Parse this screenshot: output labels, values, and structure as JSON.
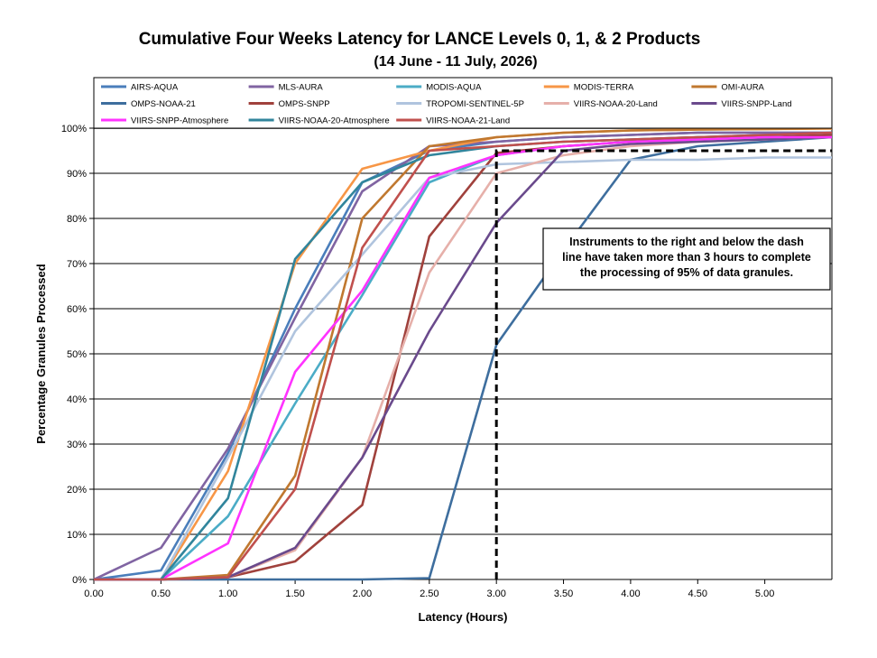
{
  "chart_data": {
    "type": "line",
    "title": "Cumulative Four Weeks Latency  for LANCE Levels 0, 1, & 2 Products",
    "subtitle": "(14  June   -  11  July,  2026)",
    "xlabel": "Latency (Hours)",
    "ylabel": "Percentage Granules Processed",
    "xlim": [
      0,
      5.5
    ],
    "ylim": [
      0,
      100
    ],
    "x_ticks": [
      "0.00",
      "0.50",
      "1.00",
      "1.50",
      "2.00",
      "2.50",
      "3.00",
      "3.50",
      "4.00",
      "4.50",
      "5.00"
    ],
    "y_ticks": [
      "0%",
      "10%",
      "20%",
      "30%",
      "40%",
      "50%",
      "60%",
      "70%",
      "80%",
      "90%",
      "100%"
    ],
    "grid": "horizontal",
    "legend_position": "top",
    "annotation": "Instruments to the right and below the dash line have taken more than 3 hours to complete the processing of 95% of data granules.",
    "threshold": {
      "x": 3.0,
      "y": 95
    },
    "x": [
      0,
      0.5,
      1.0,
      1.5,
      2.0,
      2.5,
      3.0,
      3.5,
      4.0,
      4.5,
      5.0,
      5.5
    ],
    "series": [
      {
        "name": "AIRS-AQUA",
        "color": "#4a7ebb",
        "values": [
          0,
          2,
          28,
          60,
          88,
          95,
          97,
          98,
          98.5,
          99,
          99,
          99
        ]
      },
      {
        "name": "MLS-AURA",
        "color": "#8064a2",
        "values": [
          0,
          7,
          29,
          58,
          86,
          96,
          97,
          98,
          98.5,
          99,
          99,
          99
        ]
      },
      {
        "name": "MODIS-AQUA",
        "color": "#4bacc6",
        "values": [
          0,
          0,
          14,
          39,
          63,
          88,
          94,
          96,
          97,
          97.5,
          98,
          98
        ]
      },
      {
        "name": "MODIS-TERRA",
        "color": "#f79646",
        "values": [
          0,
          0,
          24,
          70,
          91,
          95,
          98,
          99,
          99.5,
          99.7,
          99.8,
          99.9
        ]
      },
      {
        "name": "OMI-AURA",
        "color": "#c0782f",
        "values": [
          0,
          0,
          1,
          23,
          80,
          96,
          98,
          99,
          99.5,
          99.7,
          99.8,
          100
        ]
      },
      {
        "name": "OMPS-NOAA-21",
        "color": "#3e6e9e",
        "values": [
          0,
          0,
          0,
          0,
          0,
          0.3,
          52,
          73,
          93,
          96,
          97,
          98
        ]
      },
      {
        "name": "OMPS-SNPP",
        "color": "#a0413c",
        "values": [
          0,
          0,
          0.5,
          4,
          16.5,
          76,
          94.5,
          96,
          97,
          98,
          98,
          98.5
        ]
      },
      {
        "name": "TROPOMI-SENTINEL-5P",
        "color": "#b0c4de",
        "values": [
          0,
          0,
          27,
          55,
          72,
          89,
          92,
          92.5,
          93,
          93,
          93.5,
          93.5
        ]
      },
      {
        "name": "VIIRS-NOAA-20-Land",
        "color": "#e6b0aa",
        "values": [
          0,
          0,
          0.5,
          6.5,
          27,
          68,
          90,
          94,
          96,
          97,
          97.5,
          98
        ]
      },
      {
        "name": "VIIRS-SNPP-Land",
        "color": "#6a4a8c",
        "values": [
          0,
          0,
          0.5,
          7,
          27,
          55,
          79,
          95,
          96.5,
          97,
          97.5,
          98
        ]
      },
      {
        "name": "VIIRS-SNPP-Atmosphere",
        "color": "#ff33ff",
        "values": [
          0,
          0,
          8,
          46,
          64,
          89,
          94,
          96,
          97,
          97.5,
          98,
          98
        ]
      },
      {
        "name": "VIIRS-NOAA-20-Atmosphere",
        "color": "#31859c",
        "values": [
          0,
          0,
          18,
          71,
          88,
          94,
          96,
          97,
          97.5,
          98,
          98.5,
          99
        ]
      },
      {
        "name": "VIIRS-NOAA-21-Land",
        "color": "#c0504d",
        "values": [
          0,
          0,
          0.5,
          20,
          73.5,
          95,
          96,
          97,
          97.5,
          98,
          98.5,
          99
        ]
      }
    ]
  }
}
